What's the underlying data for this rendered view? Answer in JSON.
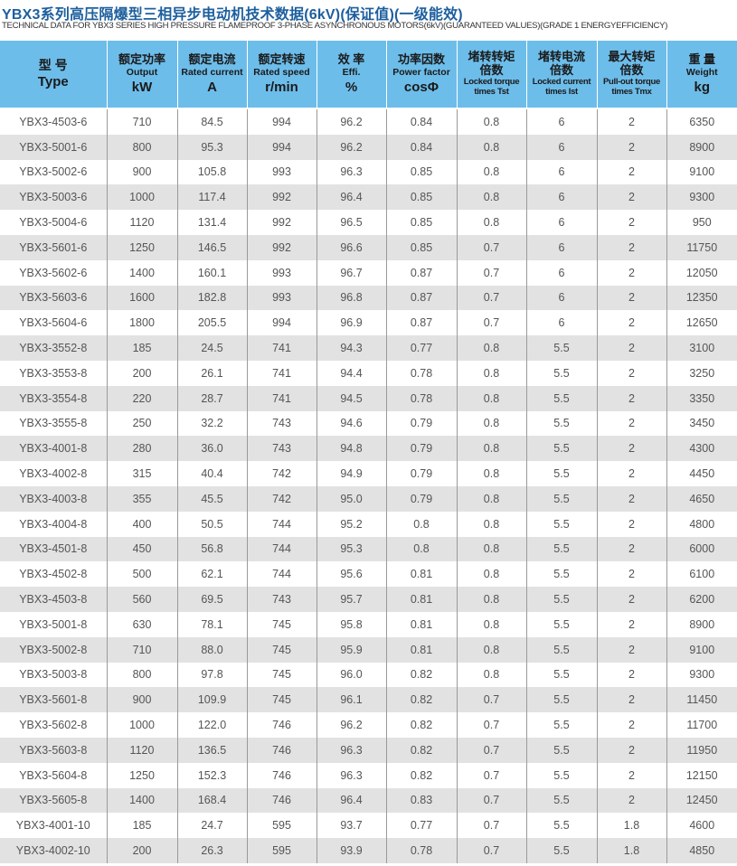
{
  "title": "YBX3系列高压隔爆型三相异步电动机技术数据(6kV)(保证值)(一级能效)",
  "subtitle": "TECHNICAL DATA FOR YBX3 SERIES HIGH PRESSURE FLAMEPROOF 3-PHASE ASYNCHRONOUS MOTORS(6kV)(GUARANTEED VALUES)(GRADE 1 ENERGYEFFICIENCY)",
  "colors": {
    "header_bg": "#6dbdea",
    "title": "#1d5f9e",
    "alt_row": "#e2e2e2"
  },
  "headers": [
    {
      "zh": "型 号",
      "en": "Type"
    },
    {
      "zh": "额定功率",
      "en": "Output",
      "unit": "kW"
    },
    {
      "zh": "额定电流",
      "en": "Rated current",
      "unit": "A"
    },
    {
      "zh": "额定转速",
      "en": "Rated speed",
      "unit": "r/min"
    },
    {
      "zh": "效 率",
      "en": "Effi.",
      "unit": "%"
    },
    {
      "zh": "功率因数",
      "en": "Power factor",
      "unit": "cosΦ"
    },
    {
      "zh": "堵转转矩",
      "zh2": "倍数",
      "en": "Locked torque",
      "en2": "times Tst"
    },
    {
      "zh": "堵转电流",
      "zh2": "倍数",
      "en": "Locked current",
      "en2": "times Ist"
    },
    {
      "zh": "最大转矩",
      "zh2": "倍数",
      "en": "Pull-out torque",
      "en2": "times Tmx"
    },
    {
      "zh": "重 量",
      "en": "Weight",
      "unit": "kg"
    }
  ],
  "rows": [
    [
      "YBX3-4503-6",
      "710",
      "84.5",
      "994",
      "96.2",
      "0.84",
      "0.8",
      "6",
      "2",
      "6350"
    ],
    [
      "YBX3-5001-6",
      "800",
      "95.3",
      "994",
      "96.2",
      "0.84",
      "0.8",
      "6",
      "2",
      "8900"
    ],
    [
      "YBX3-5002-6",
      "900",
      "105.8",
      "993",
      "96.3",
      "0.85",
      "0.8",
      "6",
      "2",
      "9100"
    ],
    [
      "YBX3-5003-6",
      "1000",
      "117.4",
      "992",
      "96.4",
      "0.85",
      "0.8",
      "6",
      "2",
      "9300"
    ],
    [
      "YBX3-5004-6",
      "1120",
      "131.4",
      "992",
      "96.5",
      "0.85",
      "0.8",
      "6",
      "2",
      "950"
    ],
    [
      "YBX3-5601-6",
      "1250",
      "146.5",
      "992",
      "96.6",
      "0.85",
      "0.7",
      "6",
      "2",
      "11750"
    ],
    [
      "YBX3-5602-6",
      "1400",
      "160.1",
      "993",
      "96.7",
      "0.87",
      "0.7",
      "6",
      "2",
      "12050"
    ],
    [
      "YBX3-5603-6",
      "1600",
      "182.8",
      "993",
      "96.8",
      "0.87",
      "0.7",
      "6",
      "2",
      "12350"
    ],
    [
      "YBX3-5604-6",
      "1800",
      "205.5",
      "994",
      "96.9",
      "0.87",
      "0.7",
      "6",
      "2",
      "12650"
    ],
    [
      "YBX3-3552-8",
      "185",
      "24.5",
      "741",
      "94.3",
      "0.77",
      "0.8",
      "5.5",
      "2",
      "3100"
    ],
    [
      "YBX3-3553-8",
      "200",
      "26.1",
      "741",
      "94.4",
      "0.78",
      "0.8",
      "5.5",
      "2",
      "3250"
    ],
    [
      "YBX3-3554-8",
      "220",
      "28.7",
      "741",
      "94.5",
      "0.78",
      "0.8",
      "5.5",
      "2",
      "3350"
    ],
    [
      "YBX3-3555-8",
      "250",
      "32.2",
      "743",
      "94.6",
      "0.79",
      "0.8",
      "5.5",
      "2",
      "3450"
    ],
    [
      "YBX3-4001-8",
      "280",
      "36.0",
      "743",
      "94.8",
      "0.79",
      "0.8",
      "5.5",
      "2",
      "4300"
    ],
    [
      "YBX3-4002-8",
      "315",
      "40.4",
      "742",
      "94.9",
      "0.79",
      "0.8",
      "5.5",
      "2",
      "4450"
    ],
    [
      "YBX3-4003-8",
      "355",
      "45.5",
      "742",
      "95.0",
      "0.79",
      "0.8",
      "5.5",
      "2",
      "4650"
    ],
    [
      "YBX3-4004-8",
      "400",
      "50.5",
      "744",
      "95.2",
      "0.8",
      "0.8",
      "5.5",
      "2",
      "4800"
    ],
    [
      "YBX3-4501-8",
      "450",
      "56.8",
      "744",
      "95.3",
      "0.8",
      "0.8",
      "5.5",
      "2",
      "6000"
    ],
    [
      "YBX3-4502-8",
      "500",
      "62.1",
      "744",
      "95.6",
      "0.81",
      "0.8",
      "5.5",
      "2",
      "6100"
    ],
    [
      "YBX3-4503-8",
      "560",
      "69.5",
      "743",
      "95.7",
      "0.81",
      "0.8",
      "5.5",
      "2",
      "6200"
    ],
    [
      "YBX3-5001-8",
      "630",
      "78.1",
      "745",
      "95.8",
      "0.81",
      "0.8",
      "5.5",
      "2",
      "8900"
    ],
    [
      "YBX3-5002-8",
      "710",
      "88.0",
      "745",
      "95.9",
      "0.81",
      "0.8",
      "5.5",
      "2",
      "9100"
    ],
    [
      "YBX3-5003-8",
      "800",
      "97.8",
      "745",
      "96.0",
      "0.82",
      "0.8",
      "5.5",
      "2",
      "9300"
    ],
    [
      "YBX3-5601-8",
      "900",
      "109.9",
      "745",
      "96.1",
      "0.82",
      "0.7",
      "5.5",
      "2",
      "11450"
    ],
    [
      "YBX3-5602-8",
      "1000",
      "122.0",
      "746",
      "96.2",
      "0.82",
      "0.7",
      "5.5",
      "2",
      "11700"
    ],
    [
      "YBX3-5603-8",
      "1120",
      "136.5",
      "746",
      "96.3",
      "0.82",
      "0.7",
      "5.5",
      "2",
      "11950"
    ],
    [
      "YBX3-5604-8",
      "1250",
      "152.3",
      "746",
      "96.3",
      "0.82",
      "0.7",
      "5.5",
      "2",
      "12150"
    ],
    [
      "YBX3-5605-8",
      "1400",
      "168.4",
      "746",
      "96.4",
      "0.83",
      "0.7",
      "5.5",
      "2",
      "12450"
    ],
    [
      "YBX3-4001-10",
      "185",
      "24.7",
      "595",
      "93.7",
      "0.77",
      "0.7",
      "5.5",
      "1.8",
      "4600"
    ],
    [
      "YBX3-4002-10",
      "200",
      "26.3",
      "595",
      "93.9",
      "0.78",
      "0.7",
      "5.5",
      "1.8",
      "4850"
    ]
  ]
}
